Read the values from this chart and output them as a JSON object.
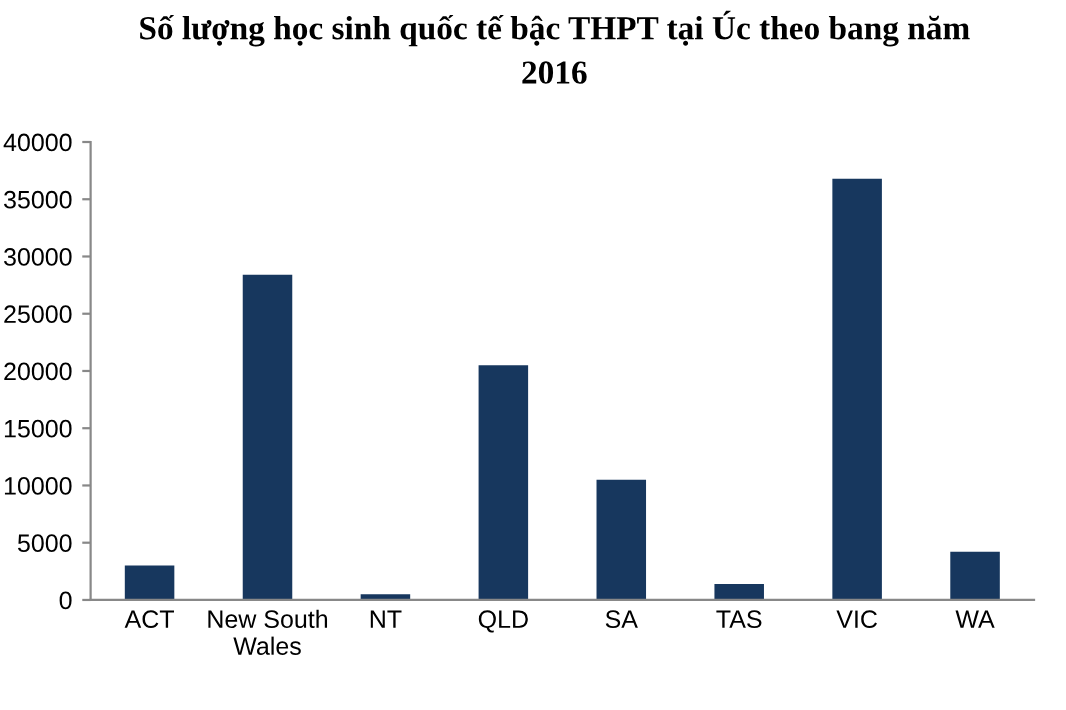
{
  "chart_data": {
    "type": "bar",
    "title": "Số lượng học sinh quốc tế bậc THPT tại Úc theo bang năm\n2016",
    "categories": [
      "ACT",
      "New South\nWales",
      "NT",
      "QLD",
      "SA",
      "TAS",
      "VIC",
      "WA"
    ],
    "values": [
      3000,
      28400,
      500,
      20500,
      10500,
      1400,
      36800,
      4200
    ],
    "color": "#17375e",
    "ylim": [
      0,
      40000
    ],
    "yticks": [
      0,
      5000,
      10000,
      15000,
      20000,
      25000,
      30000,
      35000,
      40000
    ],
    "grid": false,
    "legend": false
  }
}
